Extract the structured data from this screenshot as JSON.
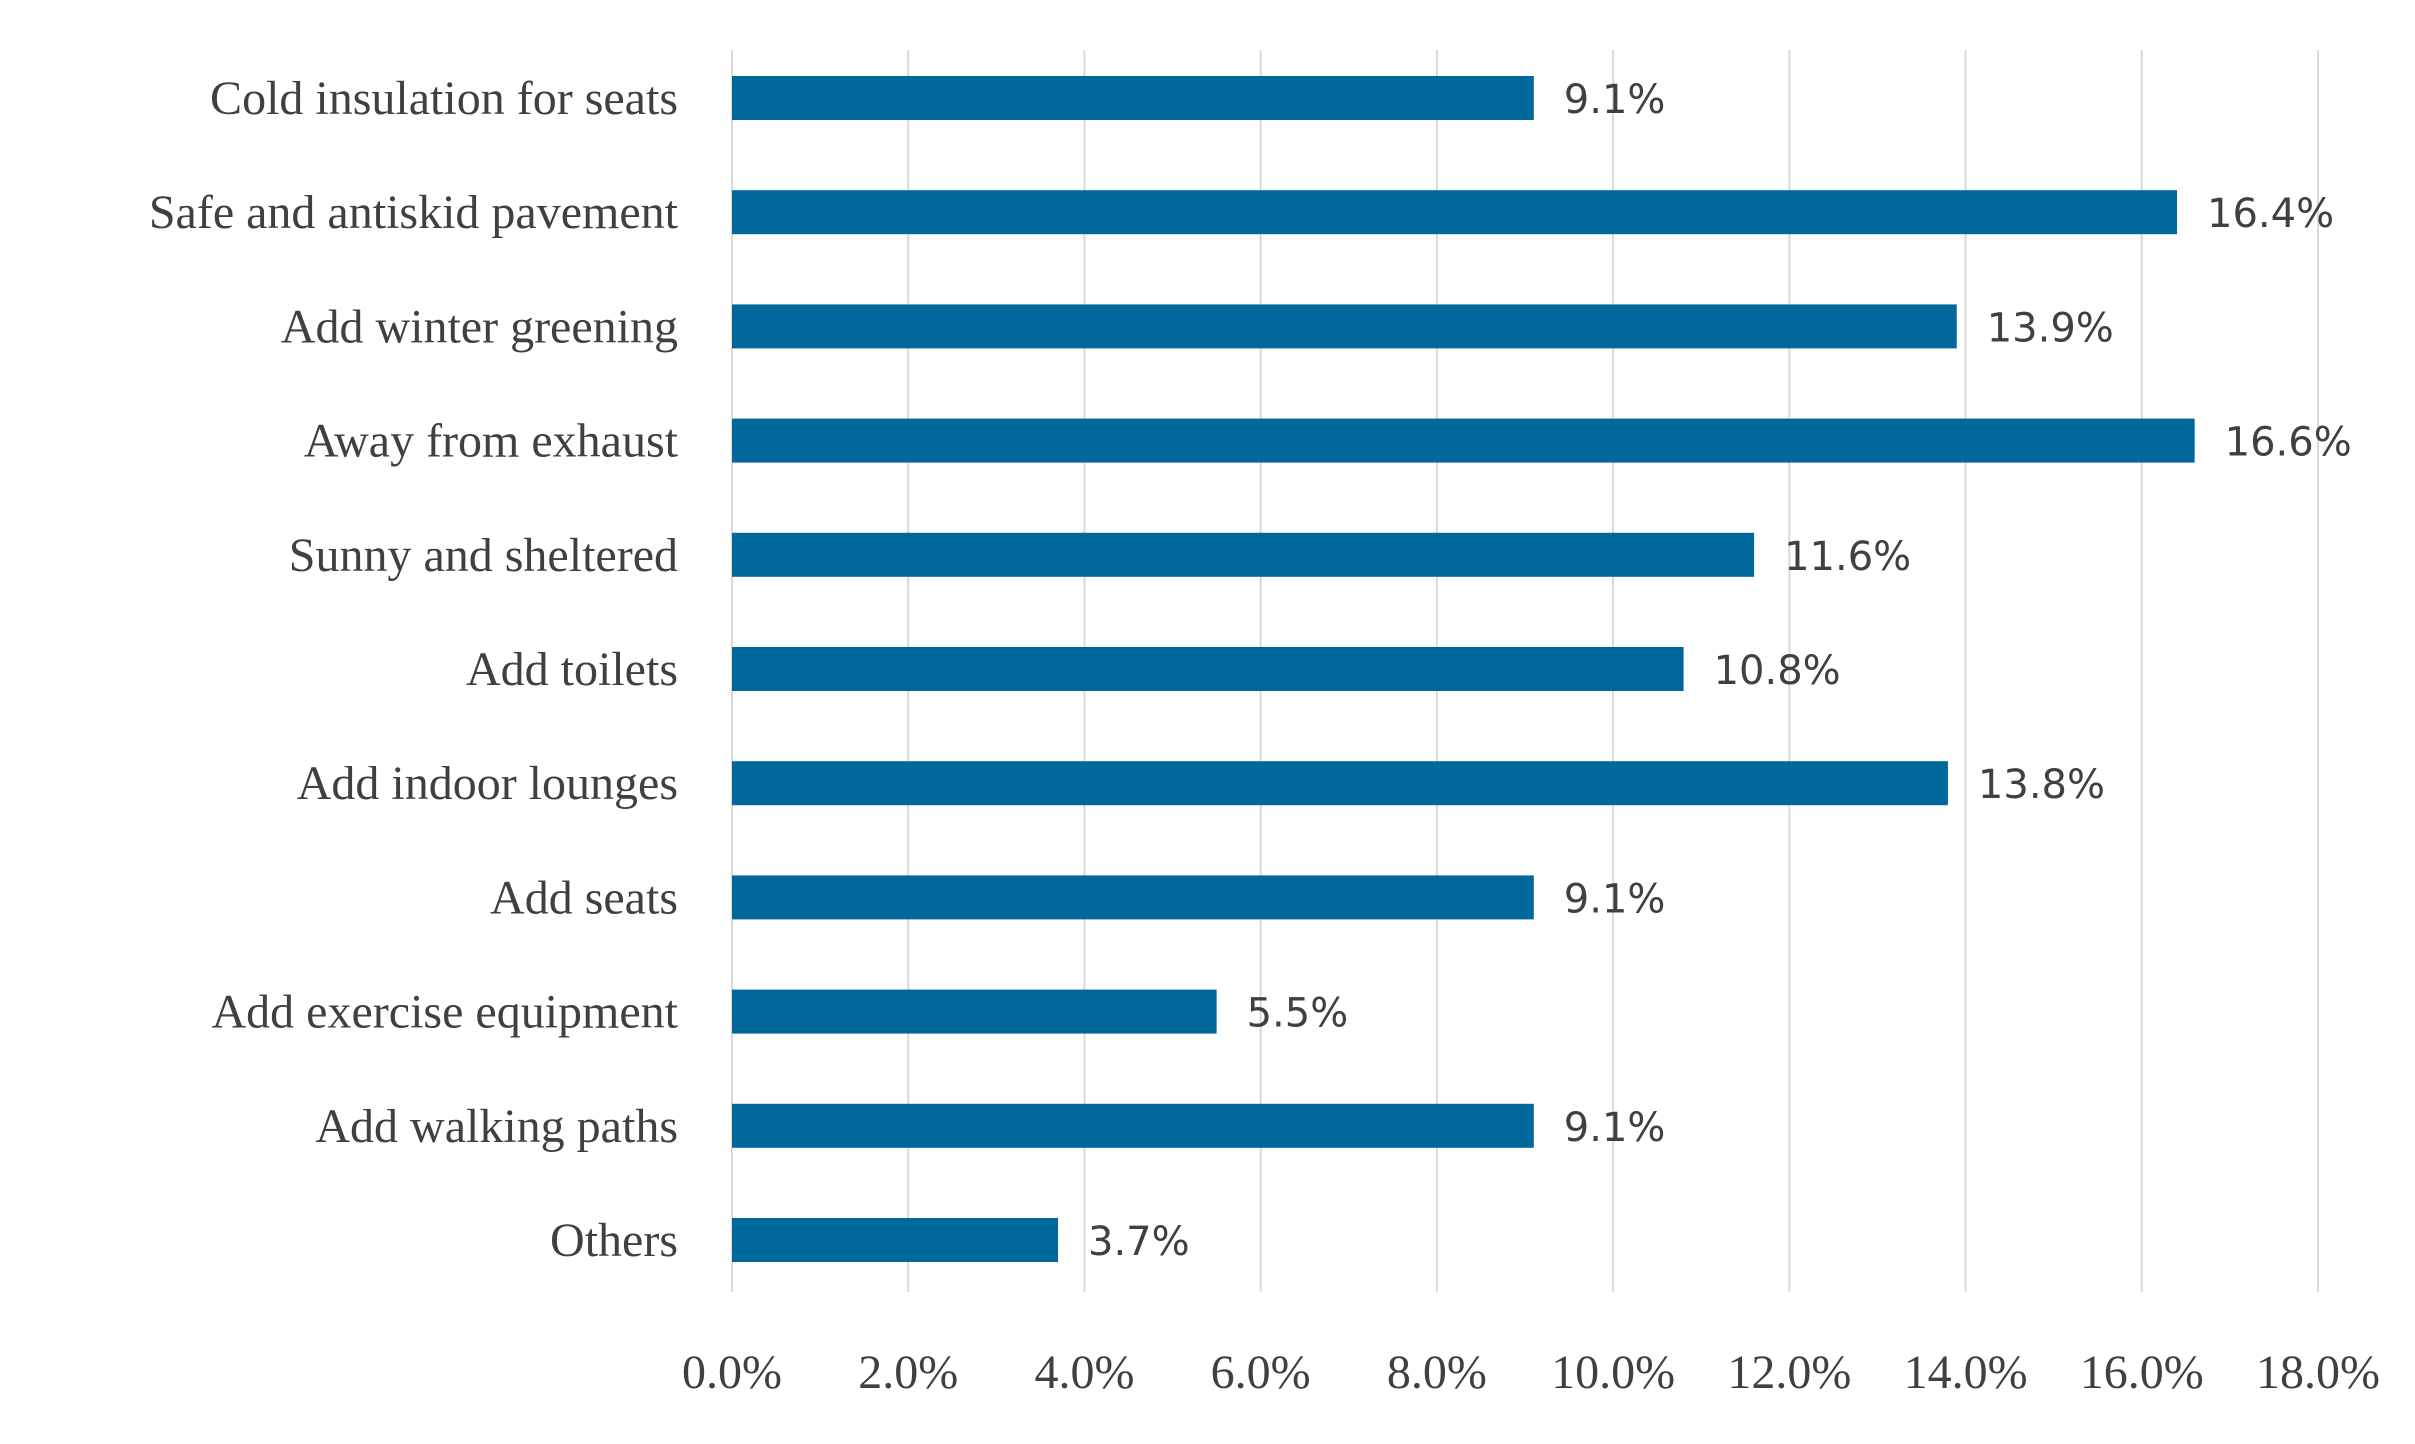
{
  "chart_data": {
    "type": "bar",
    "orientation": "horizontal",
    "title": "",
    "xlabel": "",
    "ylabel": "",
    "categories": [
      "Cold insulation for seats",
      "Safe and antiskid pavement",
      "Add winter greening",
      "Away from exhaust",
      "Sunny and sheltered",
      "Add toilets",
      "Add indoor lounges",
      "Add seats",
      "Add exercise equipment",
      "Add walking paths",
      "Others"
    ],
    "values": [
      9.1,
      16.4,
      13.9,
      16.6,
      11.6,
      10.8,
      13.8,
      9.1,
      5.5,
      9.1,
      3.7
    ],
    "value_labels": [
      "9.1%",
      "16.4%",
      "13.9%",
      "16.6%",
      "11.6%",
      "10.8%",
      "13.8%",
      "9.1%",
      "5.5%",
      "9.1%",
      "3.7%"
    ],
    "xlim": [
      0,
      18
    ],
    "xticks": [
      0,
      2,
      4,
      6,
      8,
      10,
      12,
      14,
      16,
      18
    ],
    "xtick_labels": [
      "0.0%",
      "2.0%",
      "4.0%",
      "6.0%",
      "8.0%",
      "10.0%",
      "12.0%",
      "14.0%",
      "16.0%",
      "18.0%"
    ],
    "grid": "vertical",
    "legend": "none",
    "bar_color": "#00689b"
  }
}
